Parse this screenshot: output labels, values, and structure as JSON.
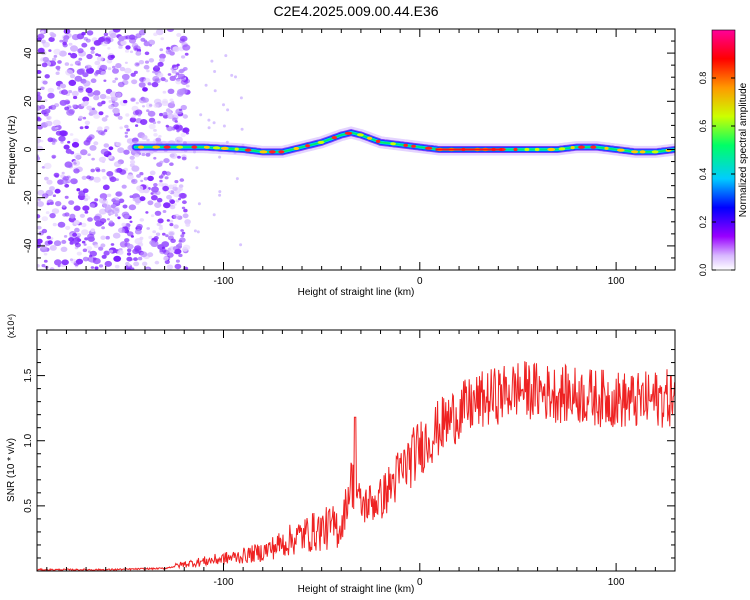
{
  "page": {
    "title": "C2E4.2025.009.00.44.E36"
  },
  "chart_data": [
    {
      "type": "heatmap",
      "title": "C2E4.2025.009.00.44.E36",
      "xlabel": "Height of straight line (km)",
      "ylabel": "Frequency (Hz)",
      "xlim": [
        -195,
        130
      ],
      "ylim": [
        -50,
        50
      ],
      "xticks": [
        -100,
        0,
        100
      ],
      "yticks": [
        -40,
        -20,
        0,
        20,
        40
      ],
      "colorbar": {
        "label": "Normalized spectral amplitude",
        "range": [
          0,
          1
        ],
        "ticks": [
          0.0,
          0.2,
          0.4,
          0.6,
          0.8
        ],
        "colors": [
          "#ffffff",
          "#9900ff",
          "#0000ff",
          "#00ccff",
          "#00ff66",
          "#ccff00",
          "#ff9900",
          "#ff0000",
          "#ff0099"
        ]
      },
      "ridge": {
        "x": [
          -145,
          -130,
          -110,
          -90,
          -80,
          -70,
          -60,
          -50,
          -40,
          -35,
          -30,
          -20,
          -10,
          0,
          10,
          20,
          30,
          40,
          50,
          60,
          70,
          80,
          90,
          100,
          110,
          120,
          130
        ],
        "frequency": [
          1,
          1,
          1,
          0,
          -1,
          -1,
          1,
          3,
          6,
          7,
          6,
          3,
          2,
          1,
          0,
          0,
          0,
          0,
          0,
          0,
          0,
          1,
          1,
          0,
          -1,
          -1,
          0
        ]
      },
      "noise_region": {
        "x_from": -195,
        "x_to": -118,
        "frequency_range": [
          -50,
          50
        ]
      }
    },
    {
      "type": "line",
      "xlabel": "Height of straight line (km)",
      "ylabel": "SNR (10 * v/v)",
      "multiplier": "(x10⁴)",
      "xlim": [
        -195,
        130
      ],
      "ylim": [
        0,
        1.85
      ],
      "xticks": [
        -100,
        0,
        100
      ],
      "yticks": [
        0.5,
        1.0,
        1.5
      ],
      "color": "#ee2222",
      "series": [
        {
          "x": [
            -195,
            -160,
            -130,
            -120,
            -110,
            -100,
            -90,
            -80,
            -70,
            -60,
            -50,
            -40,
            -35,
            -30,
            -20,
            -10,
            0,
            10,
            20,
            30,
            40,
            50,
            60,
            70,
            80,
            90,
            100,
            110,
            120,
            130
          ],
          "values": [
            0.01,
            0.01,
            0.02,
            0.05,
            0.07,
            0.09,
            0.11,
            0.14,
            0.2,
            0.26,
            0.3,
            0.33,
            0.7,
            0.5,
            0.55,
            0.75,
            0.95,
            1.1,
            1.22,
            1.3,
            1.35,
            1.4,
            1.38,
            1.36,
            1.35,
            1.33,
            1.32,
            1.3,
            1.32,
            1.33
          ]
        }
      ]
    }
  ],
  "ticks_fmt": {
    "heat_x": [
      "-100",
      "0",
      "100"
    ],
    "heat_y": [
      "-40",
      "-20",
      "0",
      "20",
      "40"
    ],
    "cbar": [
      "0.0",
      "0.2",
      "0.4",
      "0.6",
      "0.8"
    ],
    "snr_x": [
      "-100",
      "0",
      "100"
    ],
    "snr_y": [
      "0.5",
      "1.0",
      "1.5"
    ]
  }
}
